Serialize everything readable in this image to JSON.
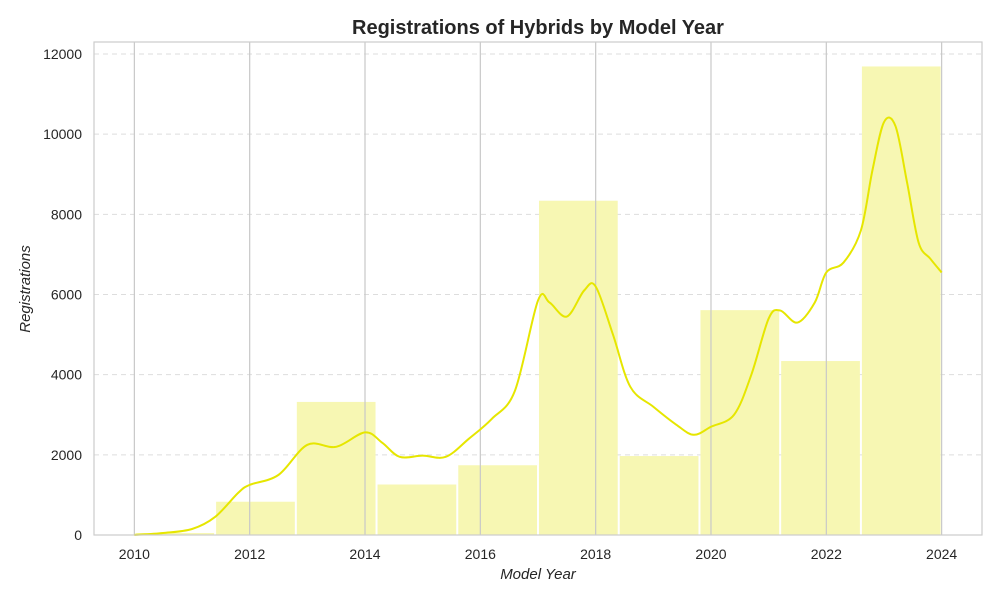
{
  "chart_data": {
    "type": "bar",
    "title": "Registrations of Hybrids by Model Year",
    "xlabel": "Model Year",
    "ylabel": "Registrations",
    "xlim": [
      2009.3,
      2024.7
    ],
    "ylim": [
      0,
      12300
    ],
    "x_ticks": [
      "2010",
      "2012",
      "2014",
      "2016",
      "2018",
      "2020",
      "2022",
      "2024"
    ],
    "y_ticks": [
      "0",
      "2000",
      "4000",
      "6000",
      "8000",
      "10000",
      "12000"
    ],
    "bins": [
      {
        "start": 2010.0,
        "end": 2011.4,
        "value": 50
      },
      {
        "start": 2011.4,
        "end": 2012.8,
        "value": 830
      },
      {
        "start": 2012.8,
        "end": 2014.2,
        "value": 3320
      },
      {
        "start": 2014.2,
        "end": 2015.6,
        "value": 1260
      },
      {
        "start": 2015.6,
        "end": 2017.0,
        "value": 1740
      },
      {
        "start": 2017.0,
        "end": 2018.4,
        "value": 8340
      },
      {
        "start": 2018.4,
        "end": 2019.8,
        "value": 1970
      },
      {
        "start": 2019.8,
        "end": 2021.2,
        "value": 5610
      },
      {
        "start": 2021.2,
        "end": 2022.6,
        "value": 4340
      },
      {
        "start": 2022.6,
        "end": 2024.0,
        "value": 11690
      }
    ],
    "kde_line": {
      "x": [
        2010.0,
        2010.5,
        2011.0,
        2011.4,
        2011.8,
        2012.0,
        2012.5,
        2013.0,
        2013.5,
        2014.0,
        2014.3,
        2014.6,
        2015.0,
        2015.4,
        2015.8,
        2016.2,
        2016.6,
        2017.0,
        2017.2,
        2017.5,
        2017.8,
        2018.0,
        2018.3,
        2018.6,
        2019.0,
        2019.4,
        2019.7,
        2020.0,
        2020.4,
        2020.7,
        2021.0,
        2021.2,
        2021.5,
        2021.8,
        2022.0,
        2022.3,
        2022.6,
        2022.8,
        2023.0,
        2023.2,
        2023.4,
        2023.6,
        2023.8,
        2024.0
      ],
      "y": [
        0,
        50,
        150,
        450,
        1050,
        1250,
        1500,
        2250,
        2200,
        2560,
        2300,
        1950,
        1980,
        1950,
        2400,
        2900,
        3600,
        5850,
        5800,
        5450,
        6100,
        6200,
        5000,
        3700,
        3200,
        2750,
        2500,
        2700,
        3000,
        4000,
        5400,
        5600,
        5300,
        5800,
        6550,
        6800,
        7600,
        9100,
        10300,
        10200,
        8800,
        7300,
        6900,
        6550
      ]
    },
    "bar_color": "#f7f7b3",
    "line_color": "#e6e600",
    "grid": "y-dashed, x-solid",
    "legend": "none"
  }
}
